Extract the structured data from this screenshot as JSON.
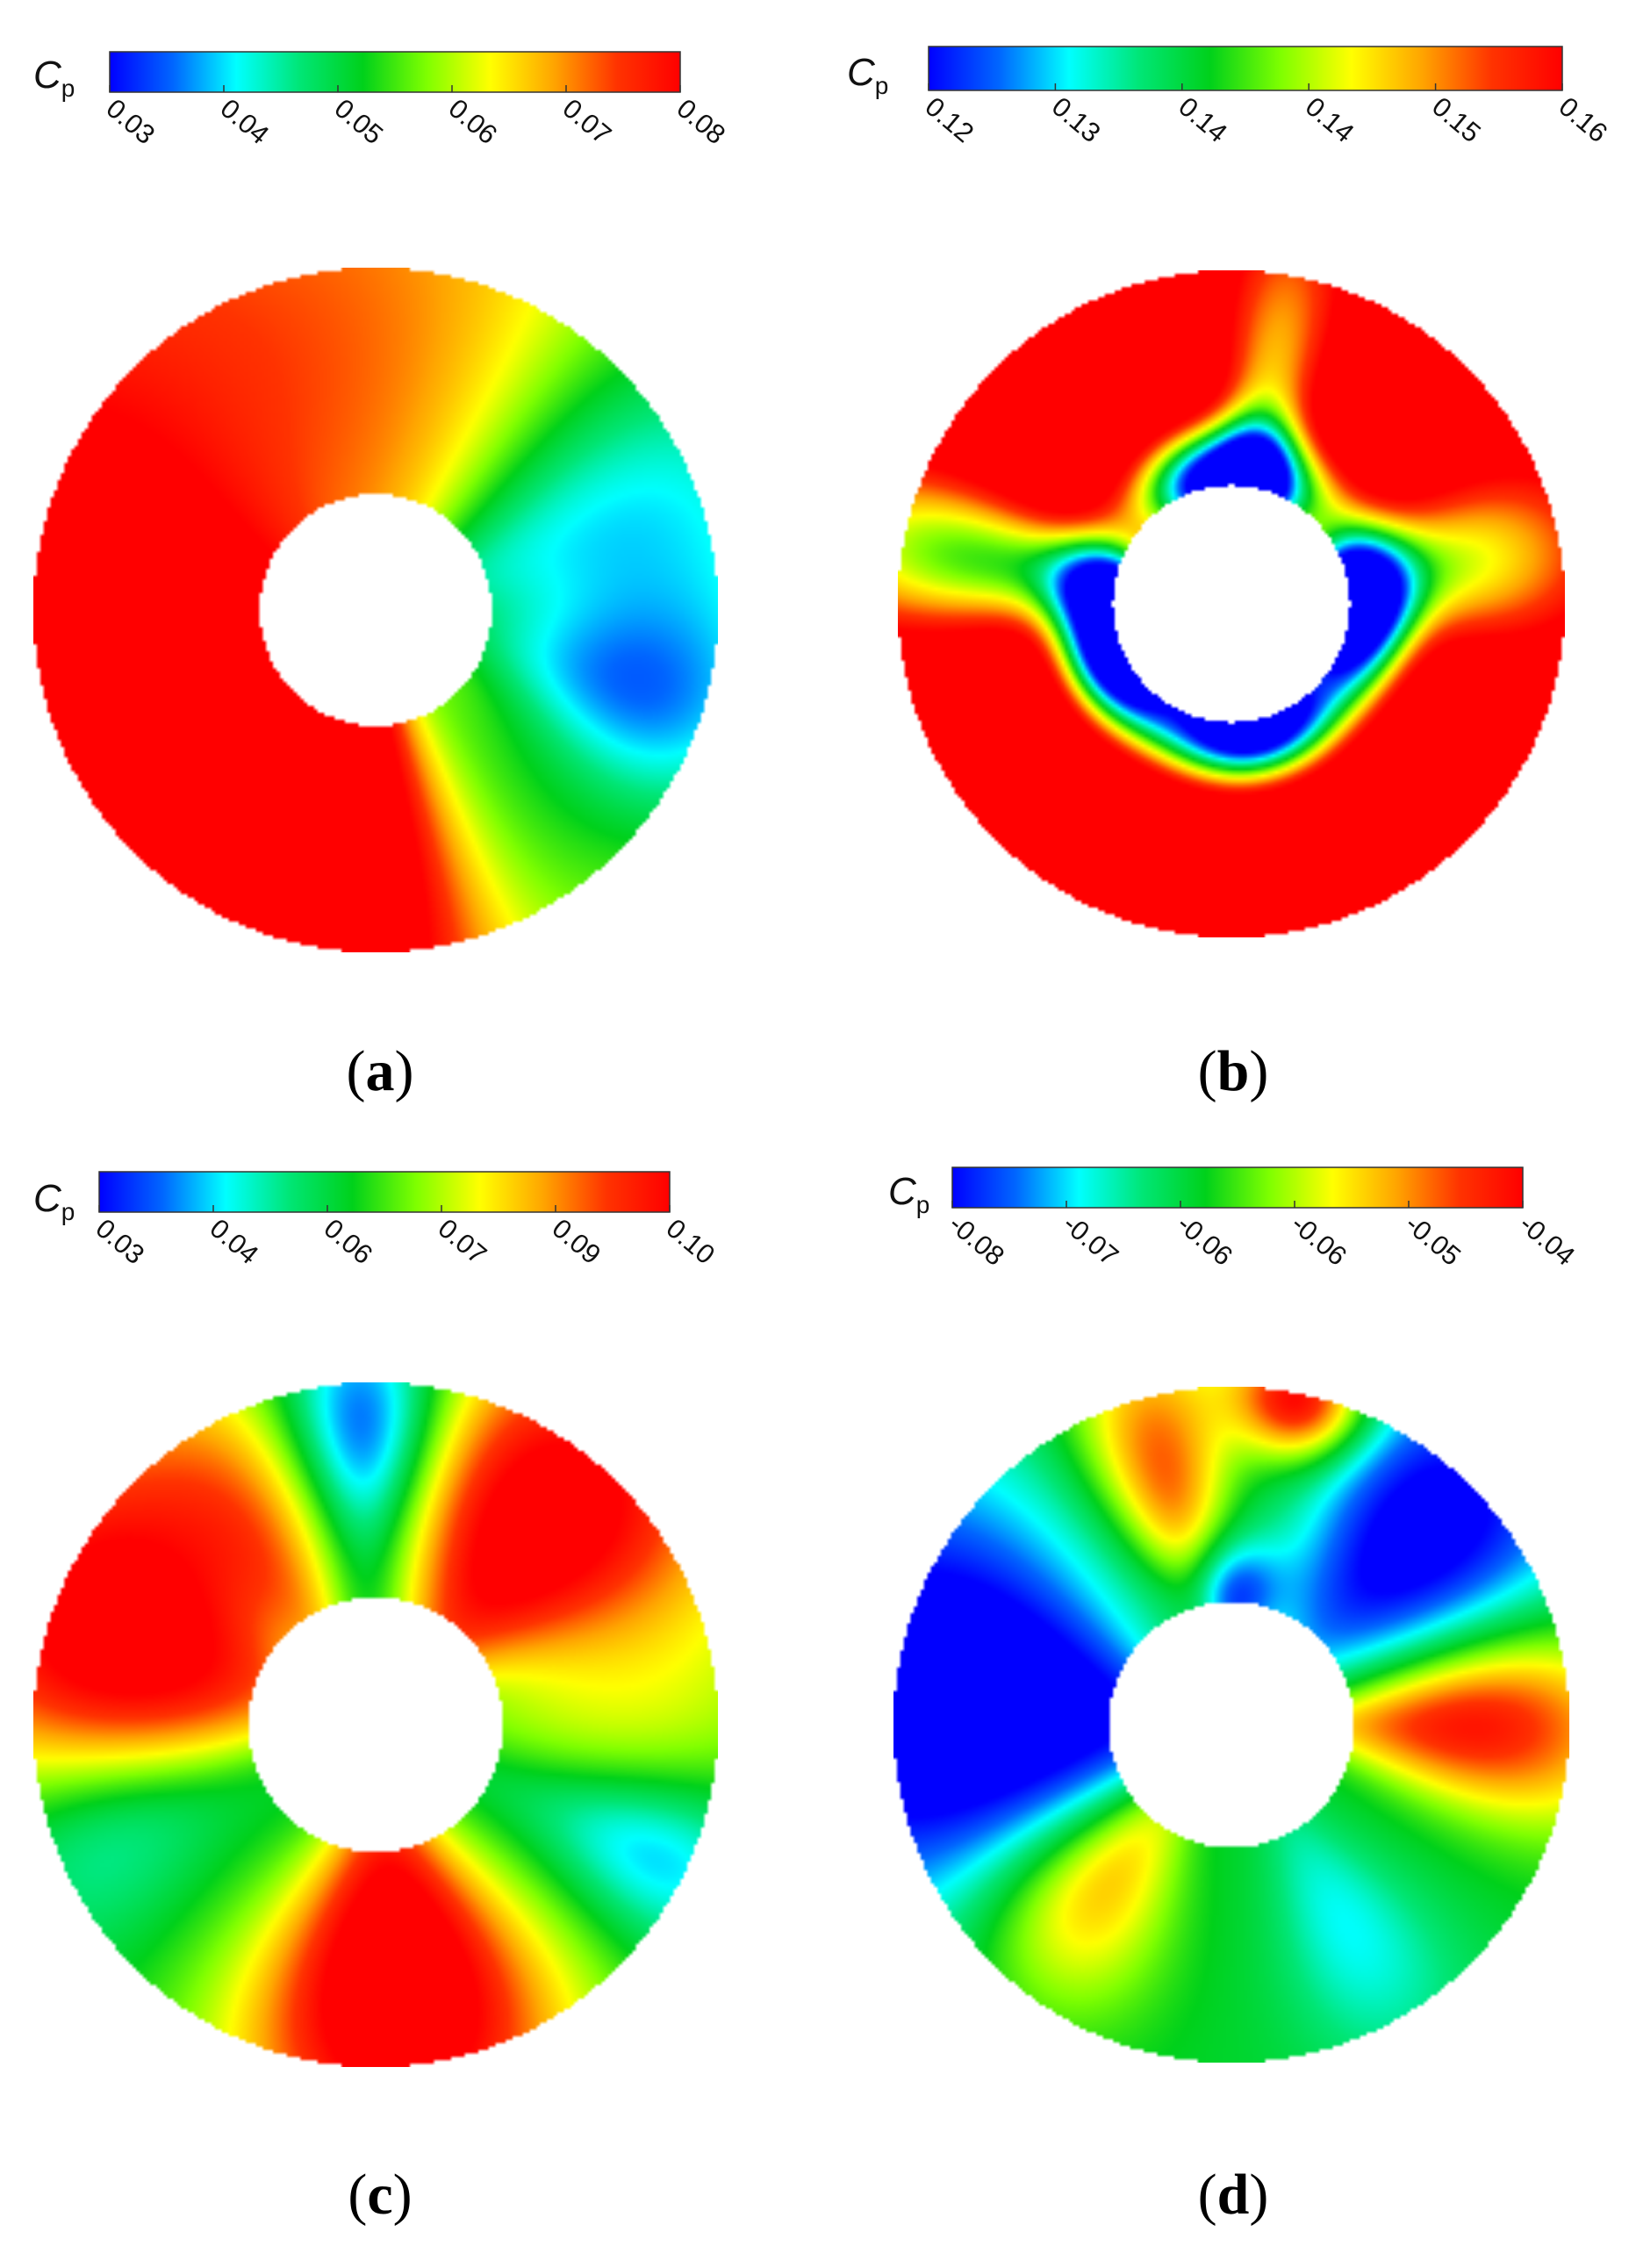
{
  "chart_data": [
    {
      "type": "heatmap",
      "panel_label": "a",
      "colorbar": {
        "symbol": "C",
        "subscript": "p",
        "min": 0.03,
        "max": 0.08,
        "tick_labels": [
          "0.03",
          "0.04",
          "0.05",
          "0.06",
          "0.07",
          "0.08"
        ]
      },
      "field": {
        "base": 0.062,
        "blobs": [
          {
            "ang": 195,
            "r": 0.78,
            "amp": 0.03,
            "sa": 50,
            "sr": 0.8
          },
          {
            "ang": 95,
            "r": 0.75,
            "amp": 0.006,
            "sa": 25,
            "sr": 0.6
          },
          {
            "ang": 60,
            "r": 0.75,
            "amp": 0.003,
            "sa": 20,
            "sr": 0.5
          },
          {
            "ang": 20,
            "r": 0.75,
            "amp": -0.022,
            "sa": 25,
            "sr": 0.6
          },
          {
            "ang": -20,
            "r": 0.8,
            "amp": -0.02,
            "sa": 15,
            "sr": 0.35
          },
          {
            "ang": -90,
            "r": 0.75,
            "amp": 0.018,
            "sa": 12,
            "sr": 0.6
          },
          {
            "ang": -125,
            "r": 0.75,
            "amp": 0.008,
            "sa": 12,
            "sr": 0.6
          },
          {
            "ang": -55,
            "r": 0.7,
            "amp": -0.008,
            "sa": 15,
            "sr": 0.5
          }
        ]
      }
    },
    {
      "type": "heatmap",
      "panel_label": "b",
      "colorbar": {
        "symbol": "C",
        "subscript": "p",
        "min": 0.12,
        "max": 0.16,
        "tick_labels": [
          "0.12",
          "0.13",
          "0.14",
          "0.14",
          "0.15",
          "0.16"
        ]
      },
      "field": {
        "base": 0.175,
        "blobs": [
          {
            "ang": 90,
            "r": 0.36,
            "amp": -0.07,
            "sa": 30,
            "sr": 0.12
          },
          {
            "ang": 200,
            "r": 0.36,
            "amp": -0.075,
            "sa": 28,
            "sr": 0.12
          },
          {
            "ang": -80,
            "r": 0.36,
            "amp": -0.07,
            "sa": 30,
            "sr": 0.12
          },
          {
            "ang": 355,
            "r": 0.36,
            "amp": -0.065,
            "sa": 25,
            "sr": 0.12
          },
          {
            "ang": 170,
            "r": 0.75,
            "amp": -0.035,
            "sa": 12,
            "sr": 0.5
          },
          {
            "ang": 10,
            "r": 0.65,
            "amp": -0.03,
            "sa": 15,
            "sr": 0.4
          },
          {
            "ang": 80,
            "r": 0.7,
            "amp": -0.025,
            "sa": 10,
            "sr": 0.5
          }
        ]
      }
    },
    {
      "type": "heatmap",
      "panel_label": "c",
      "colorbar": {
        "symbol": "C",
        "subscript": "p",
        "min": 0.03,
        "max": 0.1,
        "tick_labels": [
          "0.03",
          "0.04",
          "0.06",
          "0.07",
          "0.09",
          "0.10"
        ]
      },
      "field": {
        "base": 0.058,
        "blobs": [
          {
            "ang": 160,
            "r": 0.78,
            "amp": 0.05,
            "sa": 28,
            "sr": 0.45
          },
          {
            "ang": 50,
            "r": 0.75,
            "amp": 0.05,
            "sa": 22,
            "sr": 0.45
          },
          {
            "ang": -85,
            "r": 0.75,
            "amp": 0.055,
            "sa": 22,
            "sr": 0.45
          },
          {
            "ang": 92,
            "r": 0.88,
            "amp": -0.03,
            "sa": 10,
            "sr": 0.25
          },
          {
            "ang": 200,
            "r": 0.85,
            "amp": -0.02,
            "sa": 14,
            "sr": 0.3
          },
          {
            "ang": -25,
            "r": 0.9,
            "amp": -0.018,
            "sa": 10,
            "sr": 0.25
          },
          {
            "ang": 0,
            "r": 0.75,
            "amp": 0.012,
            "sa": 15,
            "sr": 0.45
          },
          {
            "ang": 120,
            "r": 0.6,
            "amp": 0.015,
            "sa": 12,
            "sr": 0.4
          }
        ]
      }
    },
    {
      "type": "heatmap",
      "panel_label": "d",
      "colorbar": {
        "symbol": "C",
        "subscript": "p",
        "min": -0.08,
        "max": -0.04,
        "tick_labels": [
          "-0.08",
          "-0.07",
          "-0.06",
          "-0.06",
          "-0.05",
          "-0.04"
        ]
      },
      "field": {
        "base": -0.063,
        "blobs": [
          {
            "ang": 175,
            "r": 0.78,
            "amp": -0.025,
            "sa": 28,
            "sr": 0.55
          },
          {
            "ang": 45,
            "r": 0.8,
            "amp": -0.02,
            "sa": 18,
            "sr": 0.4
          },
          {
            "ang": 105,
            "r": 0.8,
            "amp": 0.018,
            "sa": 10,
            "sr": 0.3
          },
          {
            "ang": 0,
            "r": 0.72,
            "amp": 0.022,
            "sa": 13,
            "sr": 0.35
          },
          {
            "ang": -130,
            "r": 0.62,
            "amp": 0.015,
            "sa": 15,
            "sr": 0.3
          },
          {
            "ang": -60,
            "r": 0.7,
            "amp": -0.008,
            "sa": 12,
            "sr": 0.3
          },
          {
            "ang": 78,
            "r": 0.98,
            "amp": 0.025,
            "sa": 8,
            "sr": 0.12
          },
          {
            "ang": 90,
            "r": 0.38,
            "amp": -0.015,
            "sa": 15,
            "sr": 0.12
          }
        ]
      }
    }
  ],
  "colormap": [
    "#0000ff",
    "#0066ff",
    "#00ffff",
    "#00e676",
    "#00d11b",
    "#7fff00",
    "#ffff00",
    "#ffa500",
    "#ff3300",
    "#ff0000"
  ]
}
